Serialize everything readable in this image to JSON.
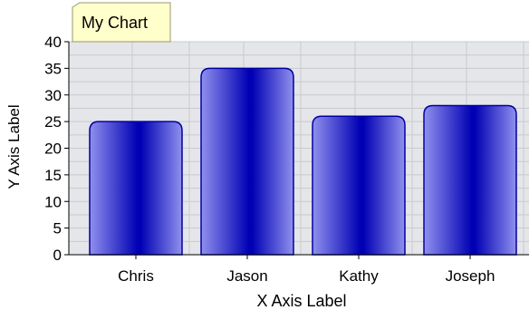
{
  "chart_data": {
    "type": "bar",
    "title": "My Chart",
    "xlabel": "X Axis Label",
    "ylabel": "Y Axis Label",
    "categories": [
      "Chris",
      "Jason",
      "Kathy",
      "Joseph"
    ],
    "values": [
      25,
      35,
      26,
      28
    ],
    "ylim": [
      0,
      40
    ],
    "yticks": [
      0,
      5,
      10,
      15,
      20,
      25,
      30,
      35,
      40
    ],
    "grid": true,
    "colors": {
      "bar_dark": "#0000b4",
      "bar_light": "#9090ee",
      "bar_stroke": "#0000a0",
      "plot_bg": "#e4e6ea",
      "grid": "#c8cacf",
      "title_bg": "#ffffcc",
      "title_border": "#999966"
    }
  }
}
